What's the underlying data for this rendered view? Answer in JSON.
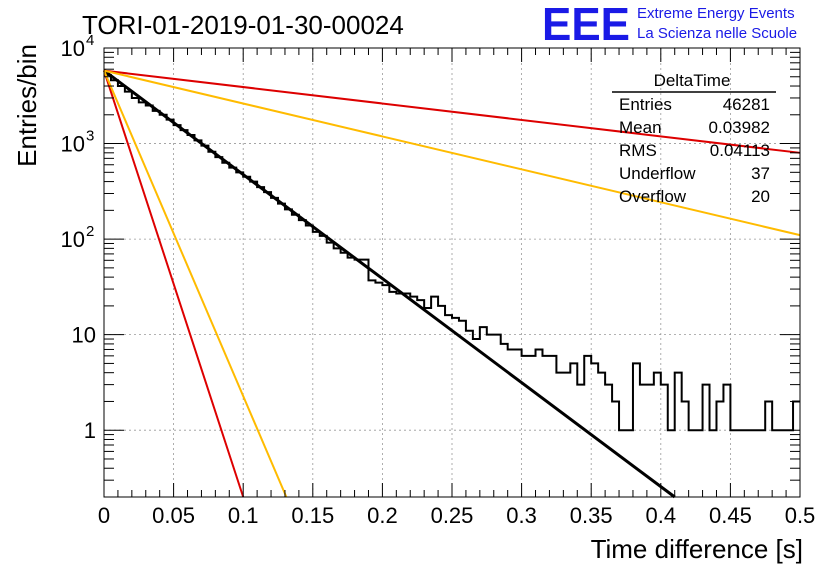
{
  "title": "TORI-01-2019-01-30-00024",
  "logo": {
    "mark": "EEE",
    "line1": "Extreme Energy Events",
    "line2": "La Scienza nelle Scuole",
    "color": "#1a1ae6"
  },
  "stats_box": {
    "title": "DeltaTime",
    "rows": [
      {
        "label": "Entries",
        "value": "46281"
      },
      {
        "label": "Mean",
        "value": "0.03982"
      },
      {
        "label": "RMS",
        "value": "0.04113"
      },
      {
        "label": "Underflow",
        "value": "37"
      },
      {
        "label": "Overflow",
        "value": "20"
      }
    ]
  },
  "chart_data": {
    "type": "histogram",
    "title": "TORI-01-2019-01-30-00024",
    "xlabel": "Time difference [s]",
    "ylabel": "Entries/bin",
    "xlim": [
      0,
      0.5
    ],
    "ylim": [
      0.2,
      10000
    ],
    "yscale": "log",
    "grid": true,
    "x_ticks": [
      {
        "v": 0,
        "label": "0"
      },
      {
        "v": 0.05,
        "label": "0.05"
      },
      {
        "v": 0.1,
        "label": "0.1"
      },
      {
        "v": 0.15,
        "label": "0.15"
      },
      {
        "v": 0.2,
        "label": "0.2"
      },
      {
        "v": 0.25,
        "label": "0.25"
      },
      {
        "v": 0.3,
        "label": "0.3"
      },
      {
        "v": 0.35,
        "label": "0.35"
      },
      {
        "v": 0.4,
        "label": "0.4"
      },
      {
        "v": 0.45,
        "label": "0.45"
      },
      {
        "v": 0.5,
        "label": "0.5"
      }
    ],
    "y_ticks": [
      {
        "v": 1,
        "label": "1"
      },
      {
        "v": 10,
        "label": "10"
      },
      {
        "v": 100,
        "label": "10",
        "sup": "2"
      },
      {
        "v": 1000,
        "label": "10",
        "sup": "3"
      },
      {
        "v": 10000,
        "label": "10",
        "sup": "4"
      }
    ],
    "histogram": {
      "bin_width": 0.005,
      "color": "#000000",
      "values": [
        5200,
        4600,
        4000,
        3500,
        3000,
        2700,
        2500,
        2200,
        2000,
        1780,
        1560,
        1380,
        1230,
        1080,
        950,
        820,
        720,
        630,
        560,
        500,
        450,
        400,
        350,
        310,
        270,
        235,
        205,
        180,
        158,
        139,
        119,
        108,
        92,
        80,
        72,
        64,
        61,
        61,
        37,
        35,
        33,
        28,
        27,
        27,
        25,
        23,
        19,
        25,
        20,
        16,
        15,
        14,
        11,
        9,
        12,
        10,
        10,
        8,
        7,
        7,
        6,
        6,
        7,
        6,
        6,
        4,
        4,
        5,
        3,
        6,
        5,
        4,
        3,
        2,
        1,
        1,
        5,
        3,
        3,
        4,
        3,
        1,
        4,
        2,
        1,
        1,
        3,
        1,
        2,
        3,
        1,
        1,
        1,
        1,
        1,
        2,
        1,
        1,
        1,
        2
      ]
    },
    "fit_lines": [
      {
        "name": "",
        "color": "#000000",
        "points": [
          [
            0,
            5800
          ],
          [
            0.41,
            0.2
          ]
        ]
      },
      {
        "name": "",
        "color": "#dd0000",
        "points": [
          [
            0,
            5800
          ],
          [
            0.5,
            800
          ]
        ]
      },
      {
        "name": "",
        "color": "#ffbb00",
        "points": [
          [
            0,
            5800
          ],
          [
            0.5,
            110
          ]
        ]
      },
      {
        "name": "",
        "color": "#dd0000",
        "points": [
          [
            0,
            5800
          ],
          [
            0.1,
            0.2
          ]
        ]
      },
      {
        "name": "",
        "color": "#ffbb00",
        "points": [
          [
            0,
            5800
          ],
          [
            0.131,
            0.2
          ]
        ]
      }
    ]
  }
}
